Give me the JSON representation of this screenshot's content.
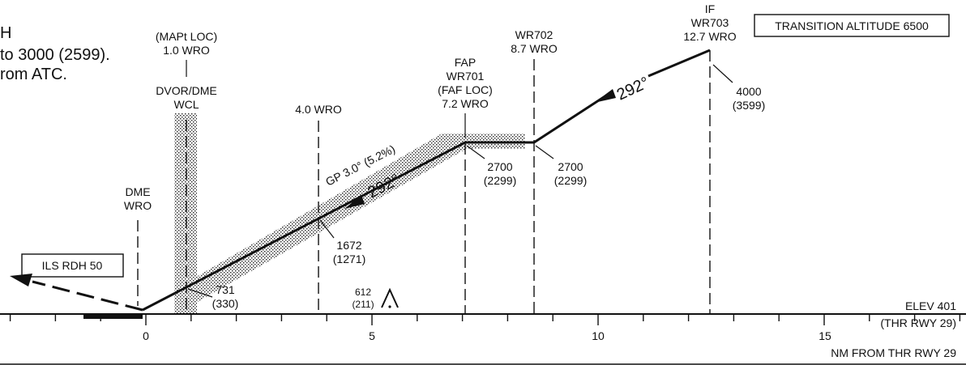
{
  "notes": {
    "line1": "H",
    "line2": "to 3000 (2599).",
    "line3": "rom ATC."
  },
  "transition_box": "TRANSITION ALTITUDE 6500",
  "ils_rdh_box": "ILS RDH 50",
  "fixes": {
    "mapt": [
      "(MAPt LOC)",
      "1.0 WRO"
    ],
    "dvor": [
      "DVOR/DME",
      "WCL"
    ],
    "wro4": [
      "4.0 WRO"
    ],
    "fap": [
      "FAP",
      "WR701",
      "(FAF LOC)",
      "7.2 WRO"
    ],
    "wr702": [
      "WR702",
      "8.7 WRO"
    ],
    "if": [
      "IF",
      "WR703",
      "12.7 WRO"
    ],
    "dme": [
      "DME",
      "WRO"
    ]
  },
  "altitudes": {
    "a731": [
      "731",
      "(330)"
    ],
    "a1672": [
      "1672",
      "(1271)"
    ],
    "a2700a": [
      "2700",
      "(2299)"
    ],
    "a2700b": [
      "2700",
      "(2299)"
    ],
    "a4000": [
      "4000",
      "(3599)"
    ],
    "obstacle": [
      "612",
      "(211)"
    ]
  },
  "courses": {
    "final": "292°",
    "initial": "292°",
    "glidepath": "GP 3.0° (5.2%)"
  },
  "axis": {
    "ticks": [
      "0",
      "5",
      "10",
      "15"
    ],
    "elev": "ELEV 401",
    "thr": "(THR RWY 29)",
    "unit": "NM FROM THR RWY 29"
  }
}
